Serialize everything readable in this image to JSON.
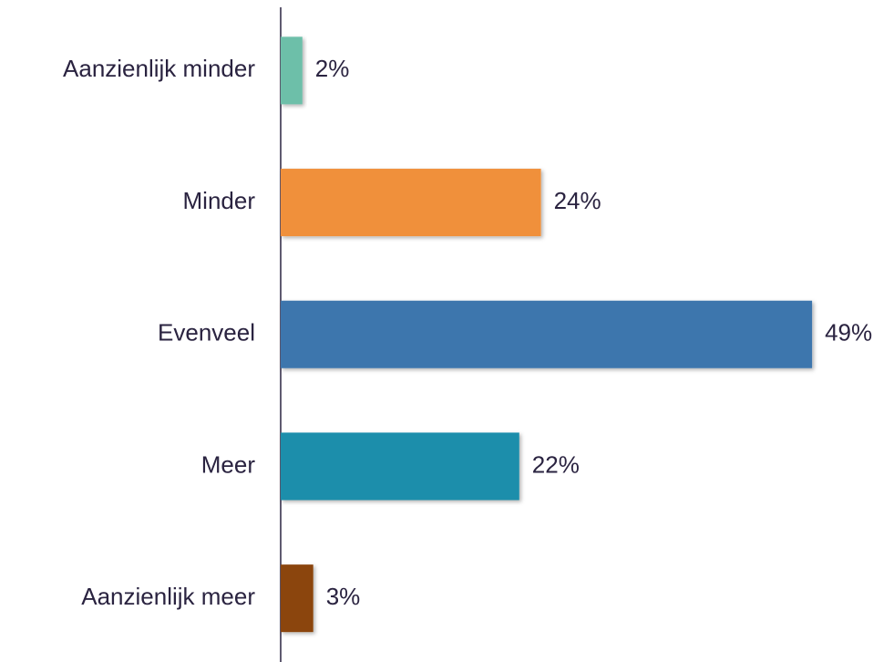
{
  "chart_data": {
    "type": "bar",
    "orientation": "horizontal",
    "categories": [
      "Aanzienlijk minder",
      "Minder",
      "Evenveel",
      "Meer",
      "Aanzienlijk meer"
    ],
    "values": [
      2,
      24,
      49,
      22,
      3
    ],
    "value_labels": [
      "2%",
      "24%",
      "49%",
      "22%",
      "3%"
    ],
    "colors": [
      "#6dbfa9",
      "#f0903a",
      "#3d76ad",
      "#1f8eab",
      "#8b4510"
    ]
  }
}
